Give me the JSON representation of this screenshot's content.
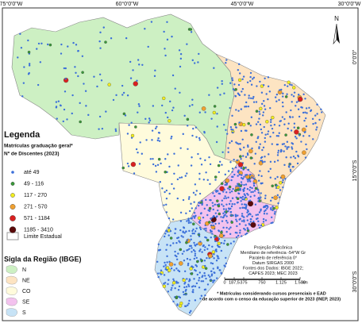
{
  "graticule": {
    "top": [
      "75°0'0\"W",
      "60°0'0\"W",
      "45°0'0\"W",
      "30°0'0\"W"
    ],
    "right": [
      "0°0'0\"",
      "15°0'0\"S",
      "30°0'0\"S"
    ]
  },
  "north_arrow": "N",
  "legend": {
    "title": "Legenda",
    "subtitle": [
      "Matrículas graduação geral*",
      "Nº de Discentes (2023)"
    ],
    "items": [
      "até 49",
      "49 - 116",
      "117 - 270",
      "271 - 570",
      "571 - 1184",
      "1185 - 3410"
    ],
    "boundary": "Limite Estadual"
  },
  "region_legend": {
    "title": "Sigla da Região (IBGE)",
    "items": [
      "N",
      "NE",
      "CO",
      "SE",
      "S"
    ]
  },
  "projection": [
    "Projeção Policônica",
    "Meridiano de referência -54°W Gr",
    "Paralelo de referência 0°",
    "Datum SIRGAS 2000",
    "Fontes dos Dados: IBGE 2022;",
    "CAPES 2023; MEC 2023"
  ],
  "scale": {
    "labels": [
      "0",
      "187,5",
      "375",
      "750",
      "1.125",
      "1.500"
    ],
    "unit": "km"
  },
  "footnote": [
    "* Matrículas considerando cursos presenciais e EAD",
    "de acordo com o censo da educação superior de 2023 (INEP, 2023)"
  ]
}
